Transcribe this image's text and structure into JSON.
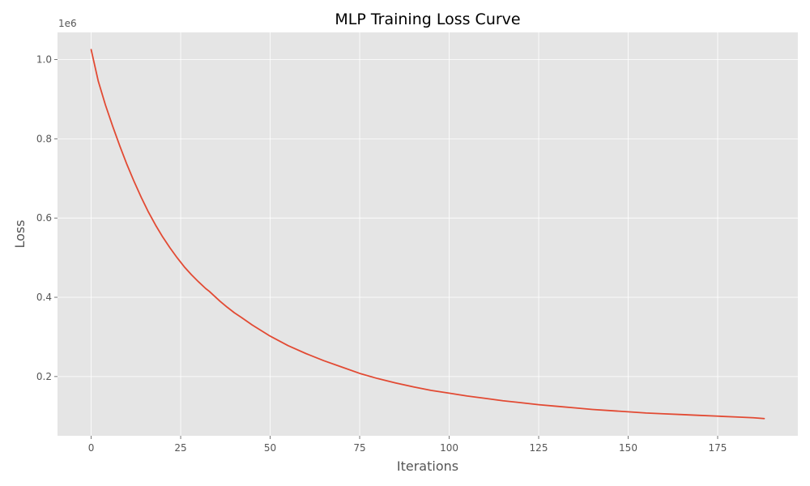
{
  "chart_data": {
    "type": "line",
    "title": "MLP Training Loss Curve",
    "xlabel": "Iterations",
    "ylabel": "Loss",
    "y_offset_label": "1e6",
    "xlim": [
      -9.4,
      197.4
    ],
    "ylim": [
      0.0505,
      1.0685
    ],
    "x_ticks": [
      0,
      25,
      50,
      75,
      100,
      125,
      150,
      175
    ],
    "x_tick_labels": [
      "0",
      "25",
      "50",
      "75",
      "100",
      "125",
      "150",
      "175"
    ],
    "y_ticks": [
      0.2,
      0.4,
      0.6,
      0.8,
      1.0
    ],
    "y_tick_labels": [
      "0.2",
      "0.4",
      "0.6",
      "0.8",
      "1.0"
    ],
    "grid": true,
    "colors": {
      "line": "#E24A33",
      "background": "#E5E5E5",
      "grid": "#FFFFFF"
    },
    "series": [
      {
        "x": [
          0,
          2,
          4,
          6,
          8,
          10,
          12,
          14,
          16,
          18,
          20,
          22,
          24,
          26,
          28,
          30,
          32,
          33,
          36,
          38,
          40,
          42,
          45,
          50,
          55,
          60,
          65,
          70,
          75,
          80,
          85,
          90,
          95,
          100,
          105,
          110,
          115,
          120,
          125,
          130,
          135,
          140,
          145,
          150,
          155,
          160,
          165,
          170,
          175,
          180,
          185,
          188
        ],
        "y": [
          1.025,
          0.945,
          0.885,
          0.832,
          0.782,
          0.735,
          0.692,
          0.652,
          0.615,
          0.582,
          0.552,
          0.525,
          0.5,
          0.477,
          0.457,
          0.439,
          0.422,
          0.415,
          0.39,
          0.375,
          0.361,
          0.349,
          0.33,
          0.302,
          0.278,
          0.258,
          0.24,
          0.224,
          0.208,
          0.195,
          0.184,
          0.174,
          0.165,
          0.158,
          0.151,
          0.145,
          0.139,
          0.134,
          0.129,
          0.125,
          0.121,
          0.117,
          0.114,
          0.111,
          0.108,
          0.106,
          0.104,
          0.102,
          0.1,
          0.098,
          0.096,
          0.094
        ]
      }
    ]
  }
}
